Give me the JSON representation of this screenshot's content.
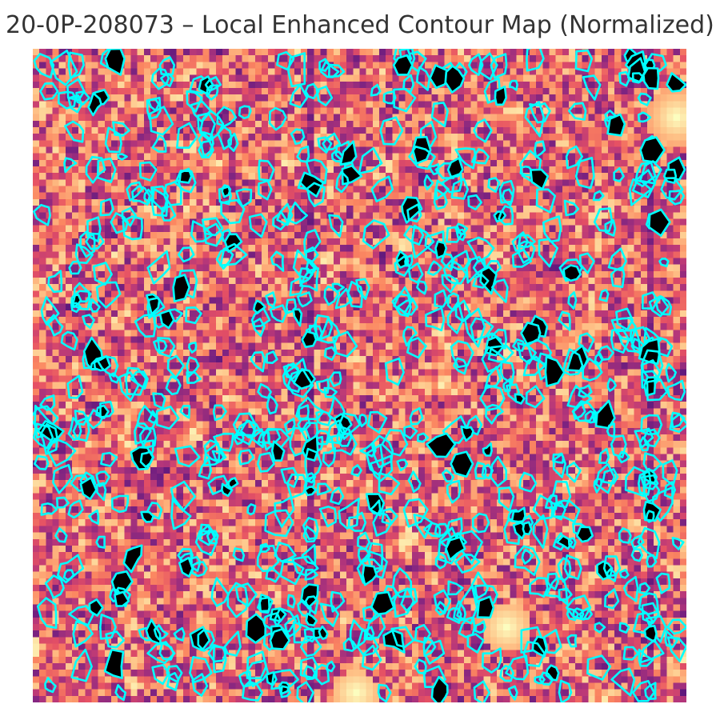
{
  "figure": {
    "title": "20-0P-208073 – Local Enhanced Contour Map (Normalized)"
  },
  "image": {
    "colormap": "magma",
    "contour_color": "#00ffff",
    "contour_fill": "#000000",
    "grid_size": 100
  }
}
